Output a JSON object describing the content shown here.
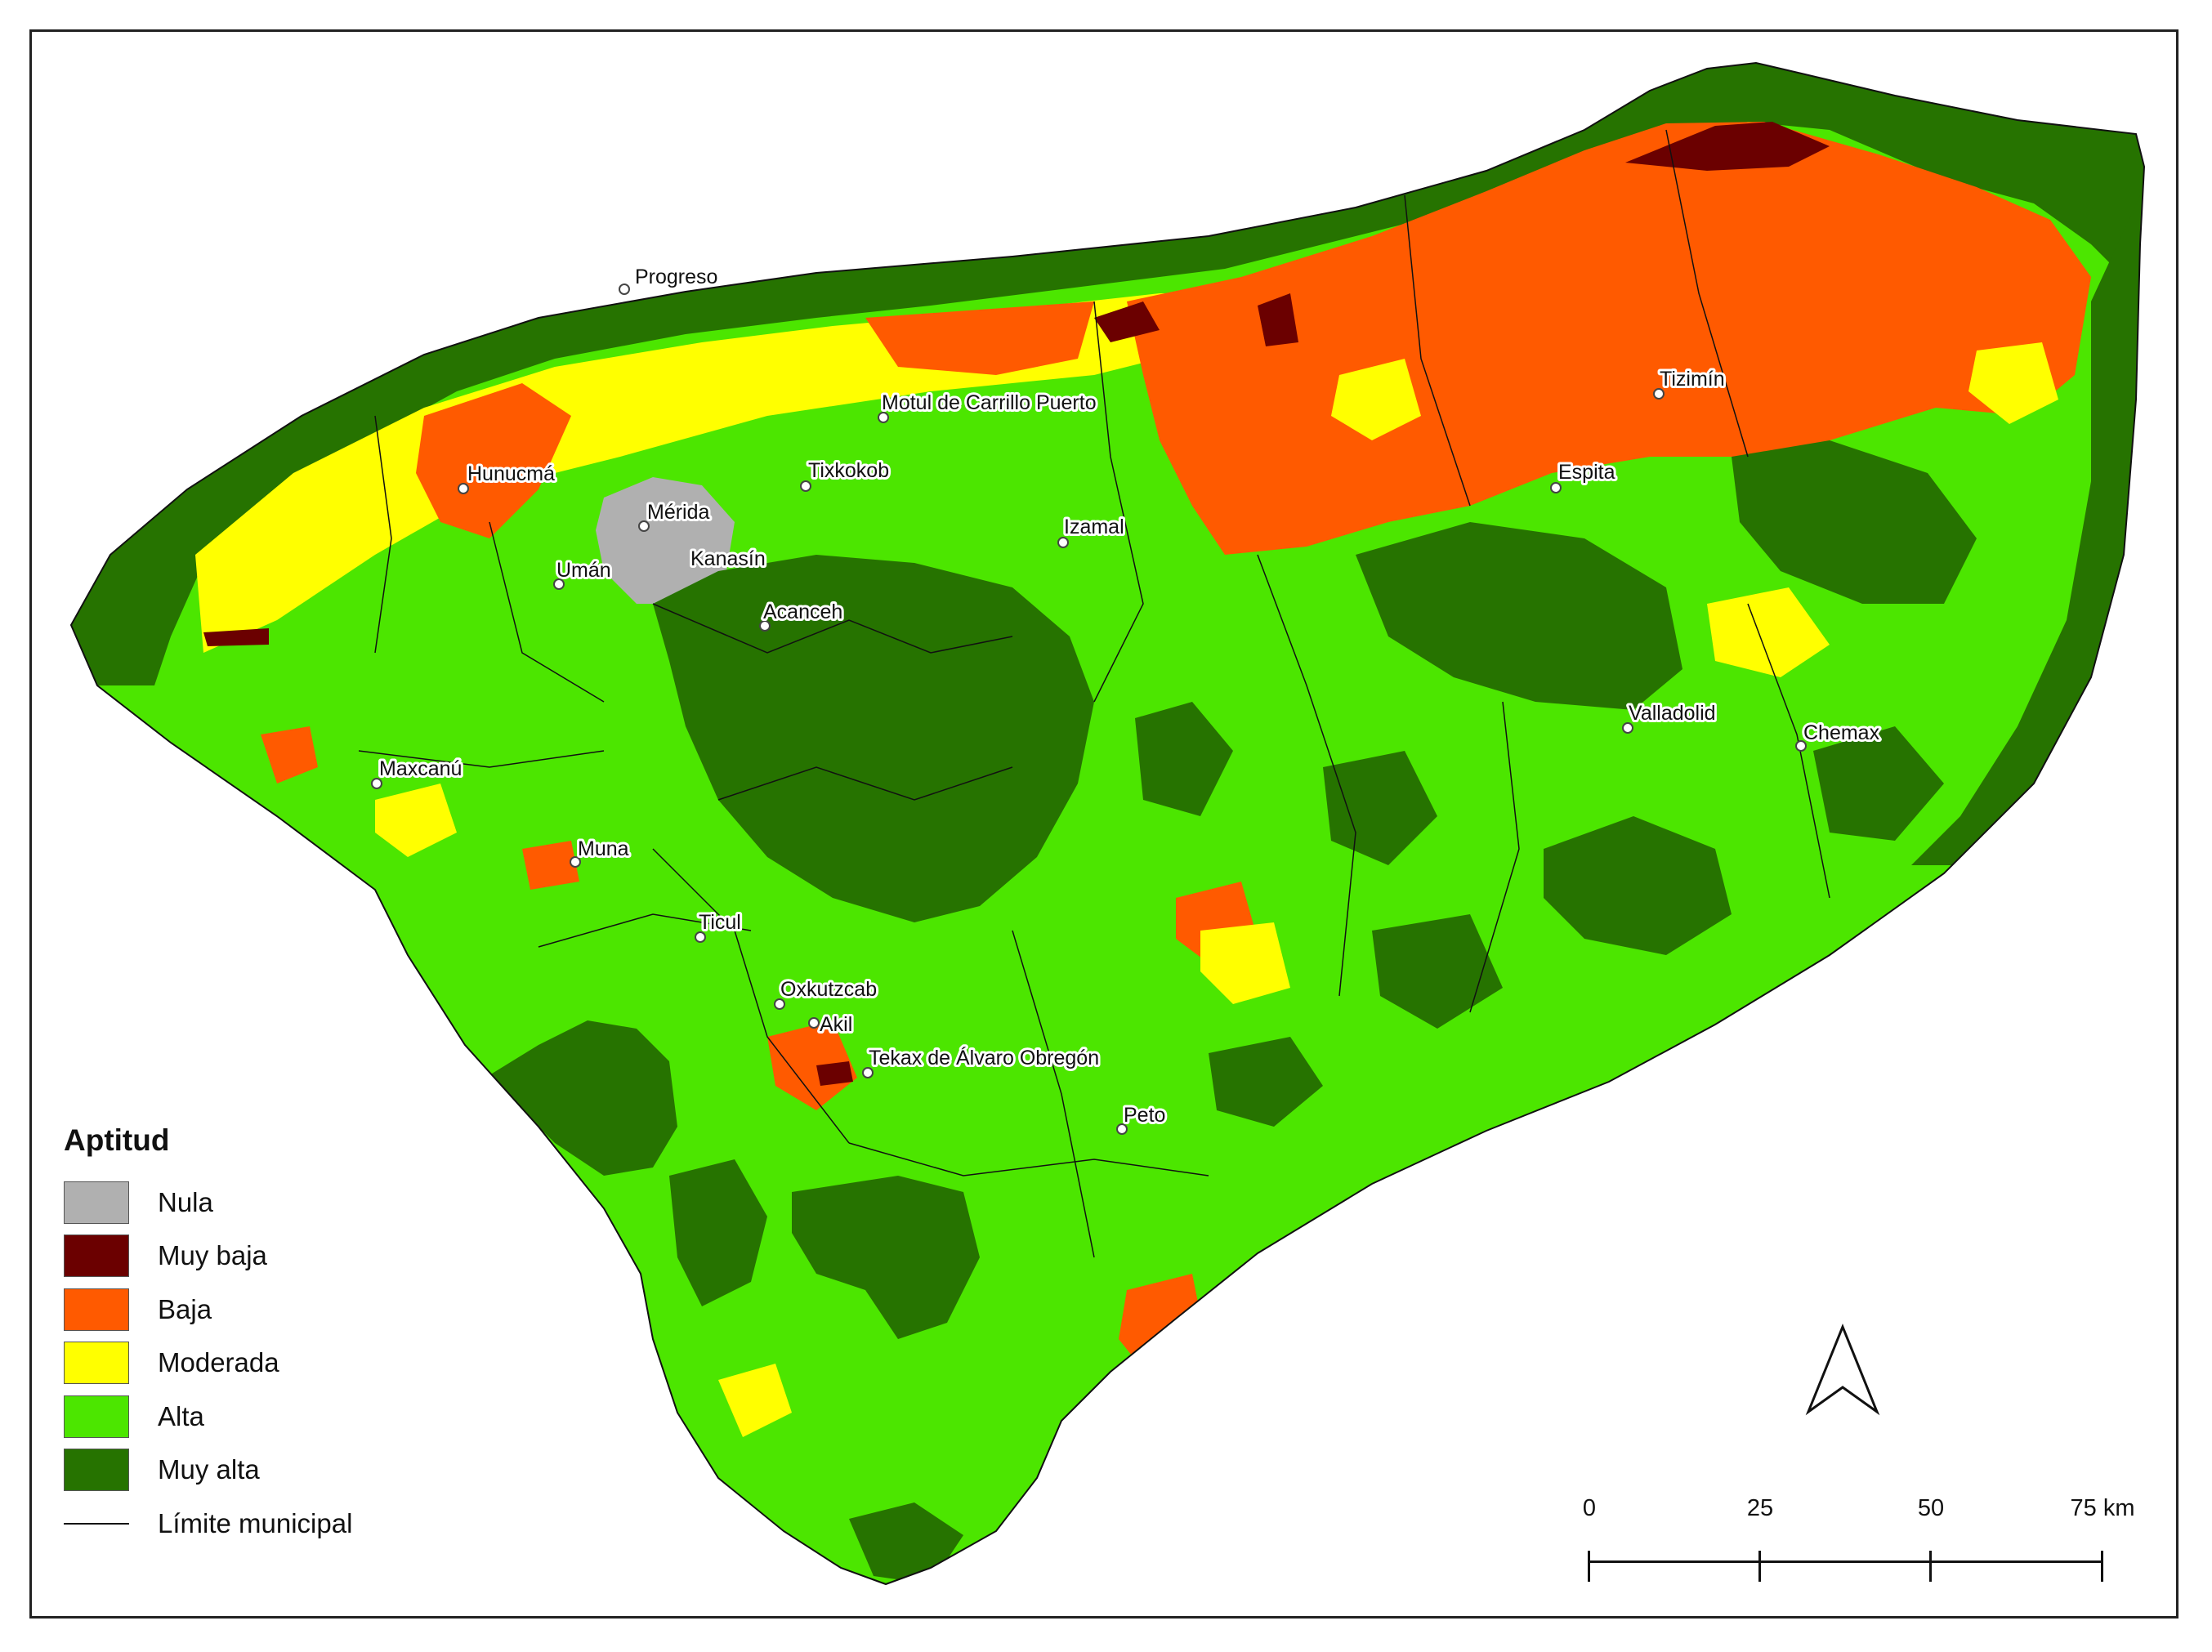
{
  "legend": {
    "title": "Aptitud",
    "classes": [
      {
        "label": "Nula",
        "color": "#b0b0b0"
      },
      {
        "label": "Muy baja",
        "color": "#6b0000"
      },
      {
        "label": "Baja",
        "color": "#ff5a00"
      },
      {
        "label": "Moderada",
        "color": "#ffff00"
      },
      {
        "label": "Alta",
        "color": "#4ce600"
      },
      {
        "label": "Muy alta",
        "color": "#267300"
      }
    ],
    "boundary_label": "Límite municipal"
  },
  "cities": [
    {
      "name": "Progreso"
    },
    {
      "name": "Hunucmá"
    },
    {
      "name": "Mérida"
    },
    {
      "name": "Kanasín"
    },
    {
      "name": "Umán"
    },
    {
      "name": "Motul de Carrillo Puerto"
    },
    {
      "name": "Tixkokob"
    },
    {
      "name": "Izamal"
    },
    {
      "name": "Tizimín"
    },
    {
      "name": "Espita"
    },
    {
      "name": "Acanceh"
    },
    {
      "name": "Valladolid"
    },
    {
      "name": "Chemax"
    },
    {
      "name": "Maxcanú"
    },
    {
      "name": "Muna"
    },
    {
      "name": "Ticul"
    },
    {
      "name": "Oxkutzcab"
    },
    {
      "name": "Akil"
    },
    {
      "name": "Tekax de Álvaro Obregón"
    },
    {
      "name": "Peto"
    }
  ],
  "scale_bar": {
    "ticks": [
      "0",
      "25",
      "50",
      "75 km"
    ]
  },
  "north_arrow": {
    "icon": "north-arrow-icon"
  }
}
